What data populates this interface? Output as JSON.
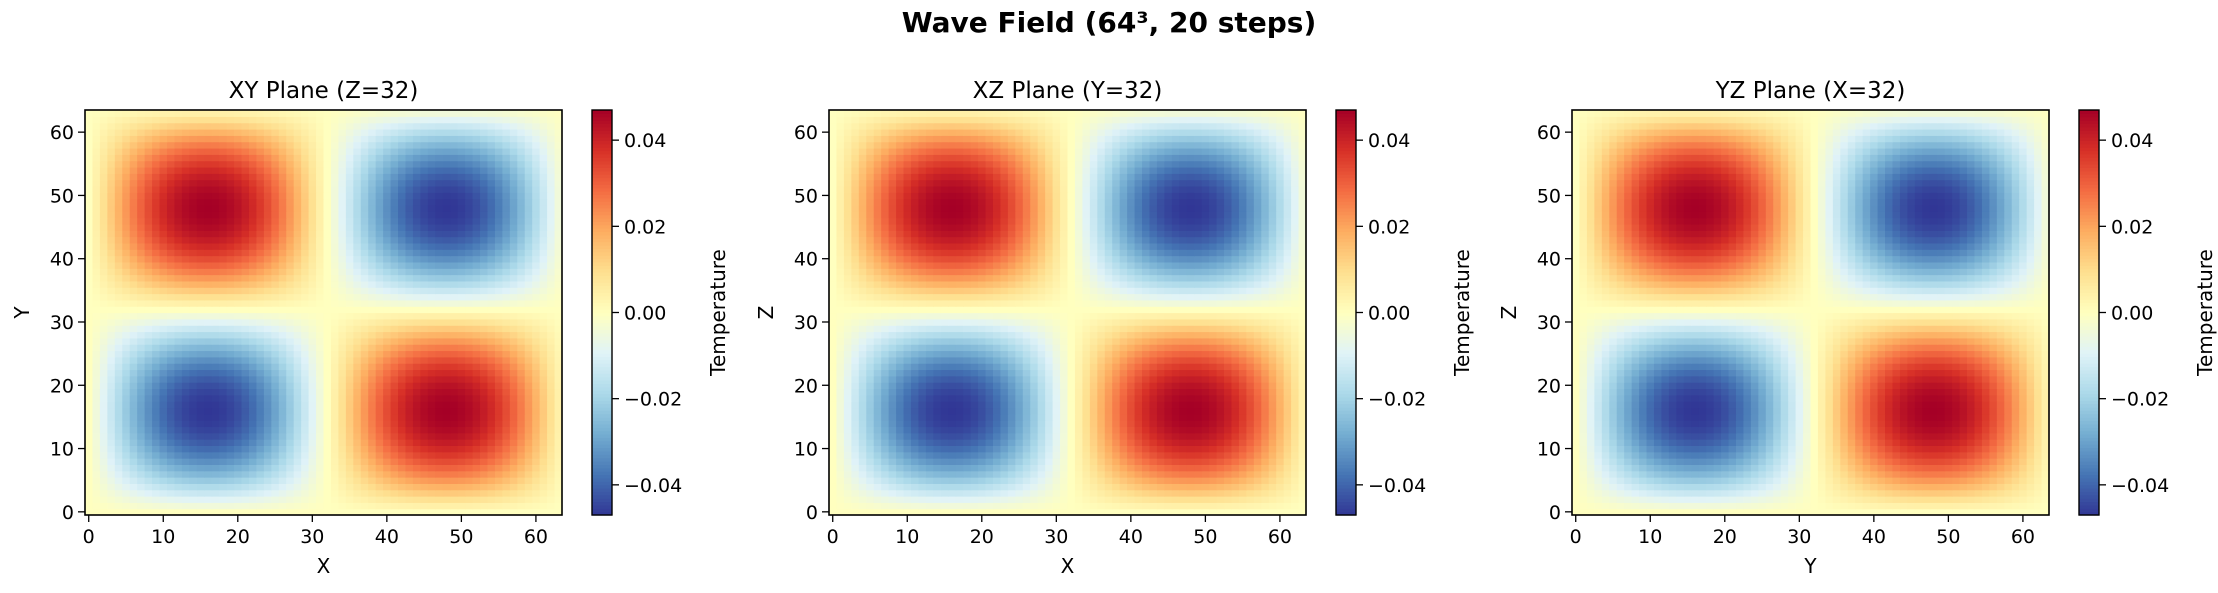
{
  "figure": {
    "suptitle": "Wave Field (64³, 20 steps)"
  },
  "colors": {
    "colormap": "RdYlBu_r",
    "stops": [
      "#313695",
      "#4575b4",
      "#74add1",
      "#abd9e9",
      "#e0f3f8",
      "#ffffbf",
      "#fee090",
      "#fdae61",
      "#f46d43",
      "#d73027",
      "#a50026"
    ]
  },
  "chart_data": [
    {
      "type": "heatmap",
      "title": "XY Plane (Z=32)",
      "xlabel": "X",
      "ylabel": "Y",
      "grid_size": 64,
      "xlim": [
        -0.5,
        63.5
      ],
      "ylim": [
        -0.5,
        63.5
      ],
      "xticks": [
        0,
        10,
        20,
        30,
        40,
        50,
        60
      ],
      "yticks": [
        0,
        10,
        20,
        30,
        40,
        50,
        60
      ],
      "field": "-A * sin(2*pi*x/64) * sin(2*pi*y/64)",
      "amplitude": 0.047,
      "extrema": [
        {
          "x": 16,
          "y": 47,
          "value": 0.047
        },
        {
          "x": 47,
          "y": 47,
          "value": -0.047
        },
        {
          "x": 16,
          "y": 16,
          "value": -0.047
        },
        {
          "x": 47,
          "y": 16,
          "value": 0.047
        }
      ],
      "colorbar": {
        "label": "Temperature",
        "range": [
          -0.047,
          0.047
        ],
        "ticks": [
          -0.04,
          -0.02,
          0.0,
          0.02,
          0.04
        ],
        "tick_labels": [
          "−0.04",
          "−0.02",
          "0.00",
          "0.02",
          "0.04"
        ]
      },
      "grid": false
    },
    {
      "type": "heatmap",
      "title": "XZ Plane (Y=32)",
      "xlabel": "X",
      "ylabel": "Z",
      "grid_size": 64,
      "xlim": [
        -0.5,
        63.5
      ],
      "ylim": [
        -0.5,
        63.5
      ],
      "xticks": [
        0,
        10,
        20,
        30,
        40,
        50,
        60
      ],
      "yticks": [
        0,
        10,
        20,
        30,
        40,
        50,
        60
      ],
      "field": "-A * sin(2*pi*x/64) * sin(2*pi*z/64)",
      "amplitude": 0.047,
      "extrema": [
        {
          "x": 16,
          "y": 47,
          "value": 0.047
        },
        {
          "x": 47,
          "y": 47,
          "value": -0.047
        },
        {
          "x": 16,
          "y": 16,
          "value": -0.047
        },
        {
          "x": 47,
          "y": 16,
          "value": 0.047
        }
      ],
      "colorbar": {
        "label": "Temperature",
        "range": [
          -0.047,
          0.047
        ],
        "ticks": [
          -0.04,
          -0.02,
          0.0,
          0.02,
          0.04
        ],
        "tick_labels": [
          "−0.04",
          "−0.02",
          "0.00",
          "0.02",
          "0.04"
        ]
      },
      "grid": false
    },
    {
      "type": "heatmap",
      "title": "YZ Plane (X=32)",
      "xlabel": "Y",
      "ylabel": "Z",
      "grid_size": 64,
      "xlim": [
        -0.5,
        63.5
      ],
      "ylim": [
        -0.5,
        63.5
      ],
      "xticks": [
        0,
        10,
        20,
        30,
        40,
        50,
        60
      ],
      "yticks": [
        0,
        10,
        20,
        30,
        40,
        50,
        60
      ],
      "field": "-A * sin(2*pi*y/64) * sin(2*pi*z/64)",
      "amplitude": 0.047,
      "extrema": [
        {
          "x": 16,
          "y": 47,
          "value": 0.047
        },
        {
          "x": 47,
          "y": 47,
          "value": -0.047
        },
        {
          "x": 16,
          "y": 16,
          "value": -0.047
        },
        {
          "x": 47,
          "y": 16,
          "value": 0.047
        }
      ],
      "colorbar": {
        "label": "Temperature",
        "range": [
          -0.047,
          0.047
        ],
        "ticks": [
          -0.04,
          -0.02,
          0.0,
          0.02,
          0.04
        ],
        "tick_labels": [
          "−0.04",
          "−0.02",
          "0.00",
          "0.02",
          "0.04"
        ]
      },
      "grid": false
    }
  ]
}
